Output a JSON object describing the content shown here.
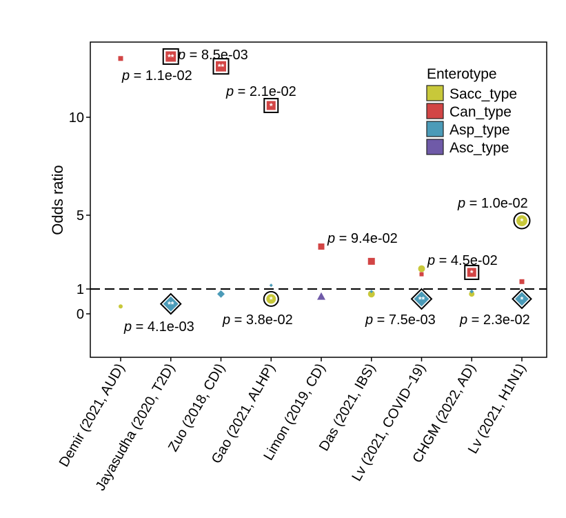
{
  "chart_data": {
    "type": "scatter",
    "ylabel": "Odds ratio",
    "yticks": [
      0,
      1,
      5,
      10
    ],
    "ylim": [
      -1.2,
      13.8
    ],
    "reference_line": 1,
    "categories": [
      "Demir (2021, AUD)",
      "Jayasudha (2020, T2D)",
      "Zuo (2018, CDI)",
      "Gao (2021, ALHP)",
      "Limon (2019, CD)",
      "Das (2021, IBS)",
      "Lv (2021, COVID−19)",
      "CHGM (2022, AD)",
      "Lv (2021, H1N1)"
    ],
    "legend": {
      "title": "Enterotype",
      "position": "top-right",
      "items": [
        {
          "label": "Sacc_type",
          "color": "#c8c83a"
        },
        {
          "label": "Can_type",
          "color": "#d24545"
        },
        {
          "label": "Asp_type",
          "color": "#4b9bb8"
        },
        {
          "label": "Asc_type",
          "color": "#6f5aa8"
        }
      ]
    },
    "series": [
      {
        "name": "Sacc_type",
        "shape": "circle",
        "color": "#c8c83a",
        "points": [
          {
            "x": 1,
            "y": 0.3,
            "size": 3
          },
          {
            "x": 4,
            "y": 0.6,
            "size": 7,
            "highlight": true,
            "stars": "*",
            "p": "p = 3.8e-02"
          },
          {
            "x": 6,
            "y": 0.8,
            "size": 5
          },
          {
            "x": 7,
            "y": 2.1,
            "size": 5
          },
          {
            "x": 8,
            "y": 0.8,
            "size": 4
          },
          {
            "x": 9,
            "y": 4.7,
            "size": 8,
            "highlight": true,
            "stars": "*",
            "p": "p = 1.0e-02"
          }
        ]
      },
      {
        "name": "Can_type",
        "shape": "square",
        "color": "#d24545",
        "points": [
          {
            "x": 1,
            "y": 13.0,
            "size": 3.5,
            "p": "p = 1.1e-02"
          },
          {
            "x": 2,
            "y": 13.1,
            "size": 7.5,
            "highlight": true,
            "stars": "**",
            "p": "p = 8.5e-03"
          },
          {
            "x": 3,
            "y": 12.6,
            "size": 7.5,
            "highlight": true,
            "stars": "**"
          },
          {
            "x": 4,
            "y": 10.6,
            "size": 6.5,
            "highlight": true,
            "stars": "*",
            "p": "p = 2.1e-02"
          },
          {
            "x": 5,
            "y": 3.3,
            "size": 4.5
          },
          {
            "x": 6,
            "y": 2.5,
            "size": 5,
            "p": "p = 9.4e-02"
          },
          {
            "x": 7,
            "y": 1.8,
            "size": 3
          },
          {
            "x": 8,
            "y": 1.9,
            "size": 6.5,
            "highlight": true,
            "stars": "*",
            "p": "p = 4.5e-02"
          },
          {
            "x": 9,
            "y": 1.4,
            "size": 3.5
          }
        ]
      },
      {
        "name": "Asp_type",
        "shape": "diamond",
        "color": "#4b9bb8",
        "points": [
          {
            "x": 2,
            "y": 0.4,
            "size": 11,
            "highlight": true,
            "stars": "**",
            "p": "p = 4.1e-03"
          },
          {
            "x": 3,
            "y": 0.8,
            "size": 5.5
          },
          {
            "x": 4,
            "y": 1.2,
            "size": 2.5
          },
          {
            "x": 6,
            "y": 0.9,
            "size": 2.5
          },
          {
            "x": 7,
            "y": 0.6,
            "size": 11,
            "highlight": true,
            "stars": "**",
            "p": "p = 7.5e-03"
          },
          {
            "x": 8,
            "y": 0.9,
            "size": 3
          },
          {
            "x": 9,
            "y": 0.6,
            "size": 10,
            "highlight": true,
            "stars": "*",
            "p": "p = 2.3e-02"
          }
        ]
      },
      {
        "name": "Asc_type",
        "shape": "triangle",
        "color": "#6f5aa8",
        "points": [
          {
            "x": 5,
            "y": 0.7,
            "size": 6
          }
        ]
      }
    ]
  }
}
